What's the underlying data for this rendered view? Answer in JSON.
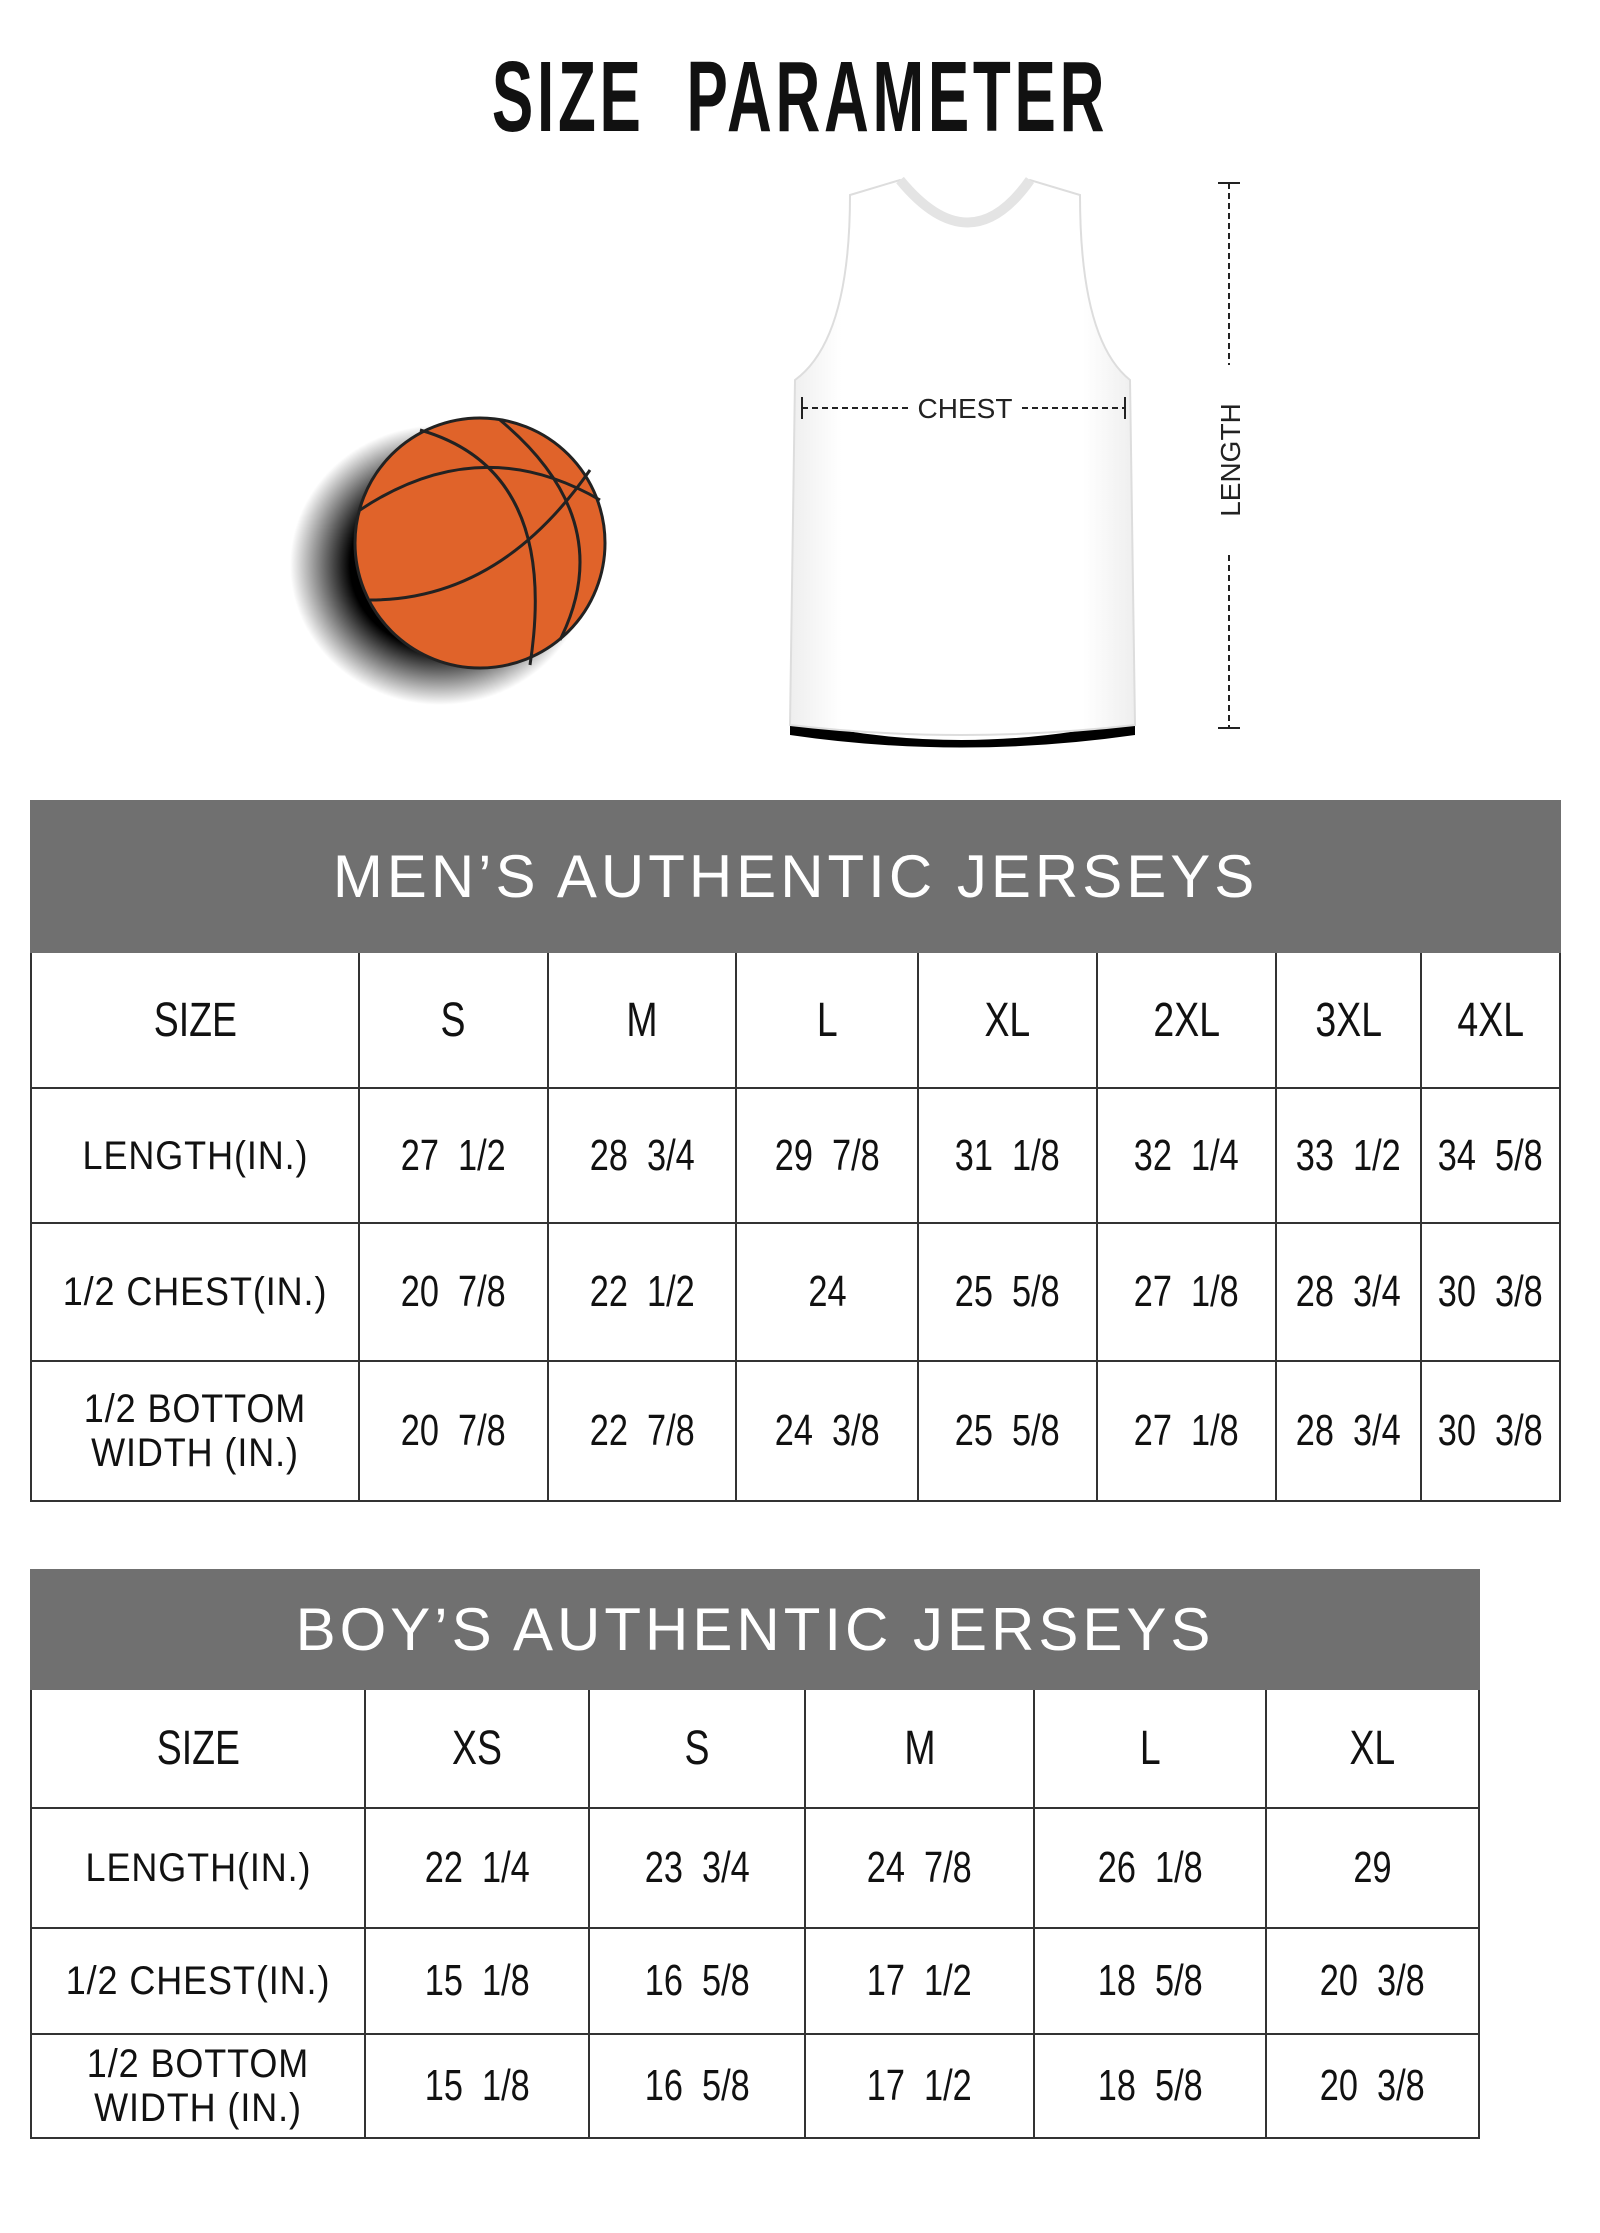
{
  "title": "SIZE  PARAMETER",
  "diagram": {
    "chest_label": "CHEST",
    "length_label": "LENGTH"
  },
  "colors": {
    "header_bg": "#707070",
    "ball": "#e0632a"
  },
  "men": {
    "title": "MEN’S AUTHENTIC JERSEYS",
    "columns": [
      "SIZE",
      "S",
      "M",
      "L",
      "XL",
      "2XL",
      "3XL",
      "4XL"
    ],
    "rows": [
      {
        "label": "LENGTH(IN.)",
        "values": [
          "27  1/2",
          "28  3/4",
          "29  7/8",
          "31  1/8",
          "32  1/4",
          "33  1/2",
          "34  5/8"
        ]
      },
      {
        "label": "1/2 CHEST(IN.)",
        "values": [
          "20  7/8",
          "22  1/2",
          "24",
          "25  5/8",
          "27  1/8",
          "28  3/4",
          "30  3/8"
        ]
      },
      {
        "label": "1/2 BOTTOM WIDTH  (IN.)",
        "values": [
          "20  7/8",
          "22  7/8",
          "24  3/8",
          "25  5/8",
          "27  1/8",
          "28  3/4",
          "30  3/8"
        ]
      }
    ]
  },
  "boys": {
    "title": "BOY’S AUTHENTIC JERSEYS",
    "columns": [
      "SIZE",
      "XS",
      "S",
      "M",
      "L",
      "XL"
    ],
    "rows": [
      {
        "label": "LENGTH(IN.)",
        "values": [
          "22  1/4",
          "23  3/4",
          "24  7/8",
          "26  1/8",
          "29"
        ]
      },
      {
        "label": "1/2 CHEST(IN.)",
        "values": [
          "15  1/8",
          "16  5/8",
          "17  1/2",
          "18  5/8",
          "20  3/8"
        ]
      },
      {
        "label": "1/2 BOTTOM WIDTH  (IN.)",
        "values": [
          "15  1/8",
          "16  5/8",
          "17  1/2",
          "18  5/8",
          "20  3/8"
        ]
      }
    ]
  }
}
